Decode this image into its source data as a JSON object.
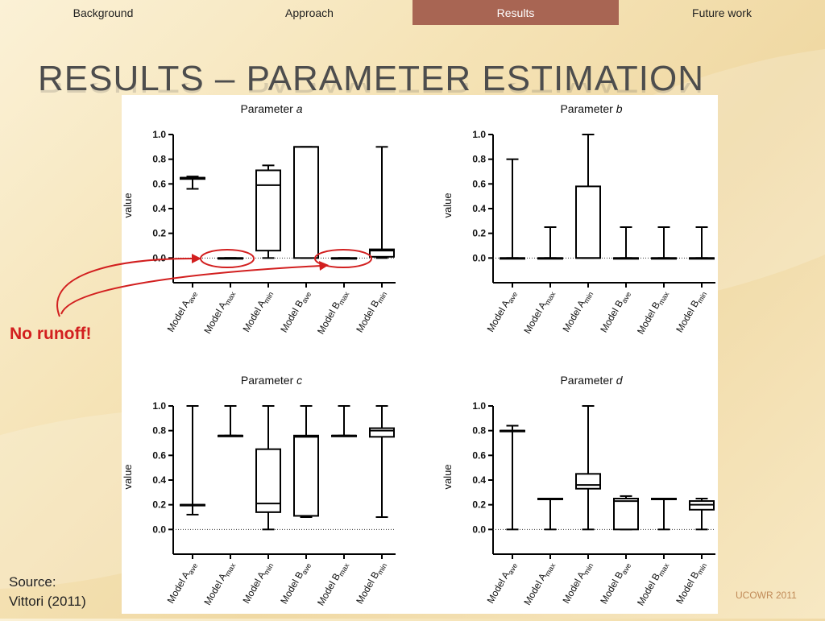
{
  "nav": {
    "tabs": [
      {
        "label": "Background",
        "active": false
      },
      {
        "label": "Approach",
        "active": false
      },
      {
        "label": "Results",
        "active": true
      },
      {
        "label": "Future work",
        "active": false
      }
    ],
    "active_color": "#a86553"
  },
  "slide": {
    "title": "Results – Parameter estimation",
    "annotation": "No runoff!",
    "annotation_color": "#d21f1f",
    "source_label": "Source:",
    "source_citation": "Vittori (2011)",
    "footer": "UCOWR 2011"
  },
  "chart_data": [
    {
      "type": "boxplot",
      "title_prefix": "Parameter ",
      "title_var": "a",
      "ylabel": "value",
      "ylim": [
        -0.2,
        1.0
      ],
      "yticks": [
        0.0,
        0.2,
        0.4,
        0.6,
        0.8,
        1.0
      ],
      "reference_line": 0.0,
      "categories": [
        {
          "base": "Model A",
          "sub": "ave"
        },
        {
          "base": "Model A",
          "sub": "max"
        },
        {
          "base": "Model A",
          "sub": "min"
        },
        {
          "base": "Model B",
          "sub": "ave"
        },
        {
          "base": "Model B",
          "sub": "max"
        },
        {
          "base": "Model B",
          "sub": "min"
        }
      ],
      "boxes": [
        {
          "min": 0.56,
          "q1": 0.64,
          "median": 0.65,
          "q3": 0.65,
          "max": 0.66
        },
        {
          "min": 0.0,
          "q1": 0.0,
          "median": 0.0,
          "q3": 0.0,
          "max": 0.0
        },
        {
          "min": 0.0,
          "q1": 0.06,
          "median": 0.59,
          "q3": 0.71,
          "max": 0.75
        },
        {
          "min": 0.0,
          "q1": 0.0,
          "median": 0.9,
          "q3": 0.9,
          "max": 0.9
        },
        {
          "min": 0.0,
          "q1": 0.0,
          "median": 0.0,
          "q3": 0.0,
          "max": 0.0
        },
        {
          "min": 0.0,
          "q1": 0.01,
          "median": 0.06,
          "q3": 0.07,
          "max": 0.9
        }
      ]
    },
    {
      "type": "boxplot",
      "title_prefix": "Parameter ",
      "title_var": "b",
      "ylabel": "value",
      "ylim": [
        -0.2,
        1.0
      ],
      "yticks": [
        0.0,
        0.2,
        0.4,
        0.6,
        0.8,
        1.0
      ],
      "reference_line": 0.0,
      "categories": [
        {
          "base": "Model A",
          "sub": "ave"
        },
        {
          "base": "Model A",
          "sub": "max"
        },
        {
          "base": "Model A",
          "sub": "min"
        },
        {
          "base": "Model B",
          "sub": "ave"
        },
        {
          "base": "Model B",
          "sub": "max"
        },
        {
          "base": "Model B",
          "sub": "min"
        }
      ],
      "boxes": [
        {
          "min": 0.0,
          "q1": 0.0,
          "median": 0.0,
          "q3": 0.0,
          "max": 0.8
        },
        {
          "min": 0.0,
          "q1": 0.0,
          "median": 0.0,
          "q3": 0.0,
          "max": 0.25
        },
        {
          "min": 0.0,
          "q1": 0.0,
          "median": 0.0,
          "q3": 0.58,
          "max": 1.0
        },
        {
          "min": 0.0,
          "q1": 0.0,
          "median": 0.0,
          "q3": 0.0,
          "max": 0.25
        },
        {
          "min": 0.0,
          "q1": 0.0,
          "median": 0.0,
          "q3": 0.0,
          "max": 0.25
        },
        {
          "min": 0.0,
          "q1": 0.0,
          "median": 0.0,
          "q3": 0.0,
          "max": 0.25
        }
      ]
    },
    {
      "type": "boxplot",
      "title_prefix": "Parameter ",
      "title_var": "c",
      "ylabel": "value",
      "ylim": [
        -0.2,
        1.0
      ],
      "yticks": [
        0.0,
        0.2,
        0.4,
        0.6,
        0.8,
        1.0
      ],
      "reference_line": 0.0,
      "categories": [
        {
          "base": "Model A",
          "sub": "ave"
        },
        {
          "base": "Model A",
          "sub": "max"
        },
        {
          "base": "Model A",
          "sub": "min"
        },
        {
          "base": "Model B",
          "sub": "ave"
        },
        {
          "base": "Model B",
          "sub": "max"
        },
        {
          "base": "Model B",
          "sub": "min"
        }
      ],
      "boxes": [
        {
          "min": 0.12,
          "q1": 0.2,
          "median": 0.2,
          "q3": 0.2,
          "max": 1.0
        },
        {
          "min": 0.76,
          "q1": 0.76,
          "median": 0.76,
          "q3": 0.76,
          "max": 1.0
        },
        {
          "min": 0.0,
          "q1": 0.14,
          "median": 0.21,
          "q3": 0.65,
          "max": 1.0
        },
        {
          "min": 0.1,
          "q1": 0.11,
          "median": 0.75,
          "q3": 0.76,
          "max": 1.0
        },
        {
          "min": 0.76,
          "q1": 0.76,
          "median": 0.76,
          "q3": 0.76,
          "max": 1.0
        },
        {
          "min": 0.1,
          "q1": 0.75,
          "median": 0.8,
          "q3": 0.82,
          "max": 1.0
        }
      ]
    },
    {
      "type": "boxplot",
      "title_prefix": "Parameter ",
      "title_var": "d",
      "ylabel": "value",
      "ylim": [
        -0.2,
        1.0
      ],
      "yticks": [
        0.0,
        0.2,
        0.4,
        0.6,
        0.8,
        1.0
      ],
      "reference_line": 0.0,
      "categories": [
        {
          "base": "Model A",
          "sub": "ave"
        },
        {
          "base": "Model A",
          "sub": "max"
        },
        {
          "base": "Model A",
          "sub": "min"
        },
        {
          "base": "Model B",
          "sub": "ave"
        },
        {
          "base": "Model B",
          "sub": "max"
        },
        {
          "base": "Model B",
          "sub": "min"
        }
      ],
      "boxes": [
        {
          "min": 0.0,
          "q1": 0.8,
          "median": 0.8,
          "q3": 0.8,
          "max": 0.84
        },
        {
          "min": 0.0,
          "q1": 0.25,
          "median": 0.25,
          "q3": 0.25,
          "max": 0.25
        },
        {
          "min": 0.0,
          "q1": 0.33,
          "median": 0.36,
          "q3": 0.45,
          "max": 1.0
        },
        {
          "min": 0.0,
          "q1": 0.0,
          "median": 0.23,
          "q3": 0.25,
          "max": 0.27
        },
        {
          "min": 0.0,
          "q1": 0.25,
          "median": 0.25,
          "q3": 0.25,
          "max": 0.25
        },
        {
          "min": 0.0,
          "q1": 0.16,
          "median": 0.2,
          "q3": 0.23,
          "max": 0.25
        }
      ]
    }
  ]
}
